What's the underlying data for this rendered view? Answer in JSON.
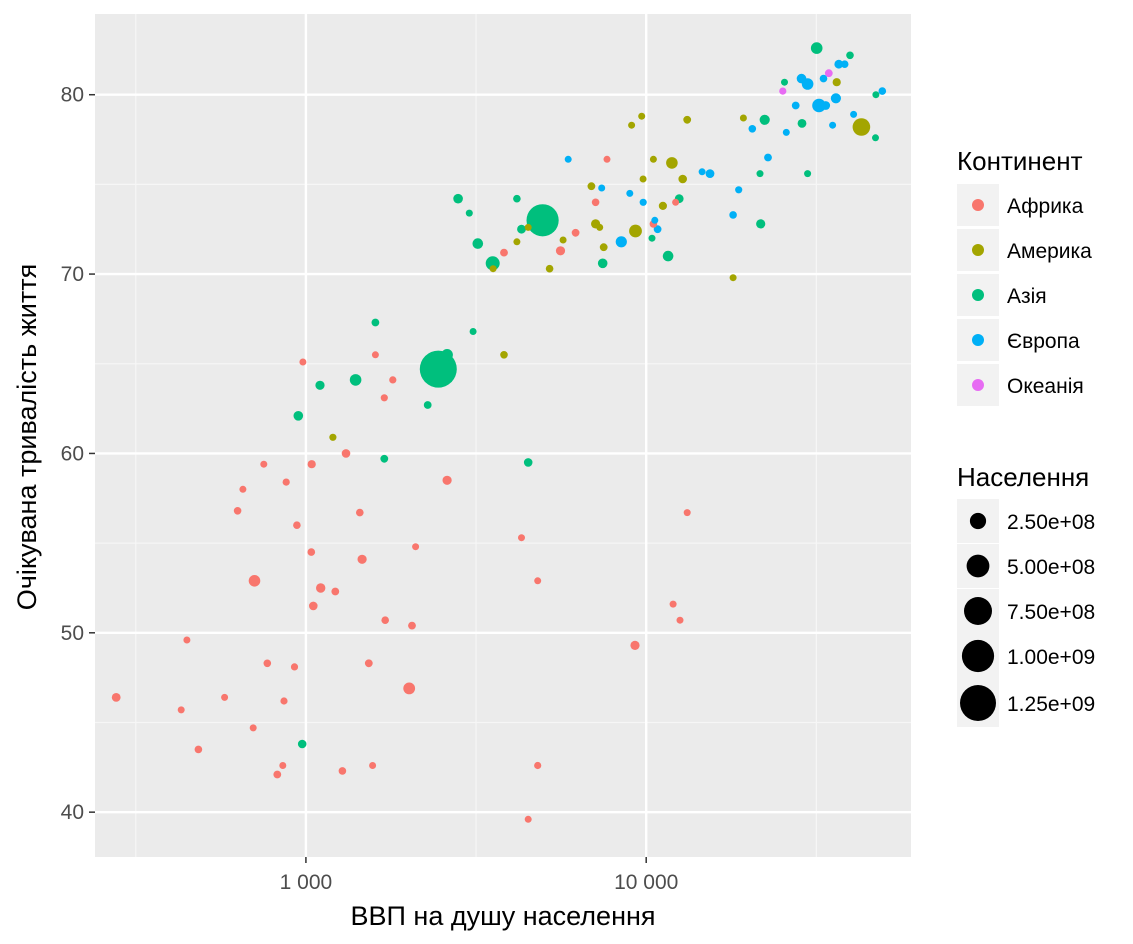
{
  "chart_data": {
    "type": "scatter",
    "title": "",
    "xlabel": "ВВП на душу населення",
    "ylabel": "Очікувана тривалість життя",
    "x_scale": "log10",
    "xlim": [
      240,
      60000
    ],
    "ylim": [
      37.5,
      84.5
    ],
    "x_ticks": [
      {
        "value": 1000,
        "label": "1 000"
      },
      {
        "value": 10000,
        "label": "10 000"
      }
    ],
    "y_ticks": [
      {
        "value": 40,
        "label": "40"
      },
      {
        "value": 50,
        "label": "50"
      },
      {
        "value": 60,
        "label": "60"
      },
      {
        "value": 70,
        "label": "70"
      },
      {
        "value": 80,
        "label": "80"
      }
    ],
    "grid": true,
    "legend_position": "right",
    "color_legend": {
      "title": "Континент",
      "items": [
        {
          "label": "Африка",
          "color": "#F8766D"
        },
        {
          "label": "Америка",
          "color": "#A3A500"
        },
        {
          "label": "Азія",
          "color": "#00BF7D"
        },
        {
          "label": "Європа",
          "color": "#00B0F6"
        },
        {
          "label": "Океанія",
          "color": "#E76BF3"
        }
      ]
    },
    "size_legend": {
      "title": "Населення",
      "items": [
        {
          "label": "2.50e+08",
          "value": 250000000
        },
        {
          "label": "5.00e+08",
          "value": 500000000
        },
        {
          "label": "7.50e+08",
          "value": 750000000
        },
        {
          "label": "1.00e+09",
          "value": 1000000000
        },
        {
          "label": "1.25e+09",
          "value": 1250000000
        }
      ]
    },
    "series": [
      {
        "name": "Африка",
        "color": "#F8766D",
        "points": [
          [
            277,
            46.4,
            75000000
          ],
          [
            430,
            45.7,
            40000000
          ],
          [
            447,
            49.6,
            40000000
          ],
          [
            483,
            43.5,
            55000000
          ],
          [
            577,
            46.4,
            40000000
          ],
          [
            630,
            56.8,
            55000000
          ],
          [
            653,
            58.0,
            45000000
          ],
          [
            700,
            44.7,
            45000000
          ],
          [
            706,
            52.9,
            130000000
          ],
          [
            752,
            59.4,
            40000000
          ],
          [
            770,
            48.3,
            55000000
          ],
          [
            824,
            42.1,
            60000000
          ],
          [
            855,
            42.6,
            45000000
          ],
          [
            862,
            46.2,
            50000000
          ],
          [
            875,
            58.4,
            50000000
          ],
          [
            926,
            48.1,
            50000000
          ],
          [
            941,
            56.0,
            55000000
          ],
          [
            980,
            65.1,
            40000000
          ],
          [
            1037,
            54.5,
            55000000
          ],
          [
            1040,
            59.4,
            65000000
          ],
          [
            1051,
            51.5,
            70000000
          ],
          [
            1105,
            52.5,
            85000000
          ],
          [
            1220,
            52.3,
            60000000
          ],
          [
            1280,
            42.3,
            55000000
          ],
          [
            1312,
            60.0,
            70000000
          ],
          [
            1440,
            56.7,
            55000000
          ],
          [
            1463,
            54.1,
            80000000
          ],
          [
            1530,
            48.3,
            60000000
          ],
          [
            1570,
            42.6,
            40000000
          ],
          [
            1600,
            65.5,
            30000000
          ],
          [
            1700,
            63.1,
            50000000
          ],
          [
            1710,
            50.7,
            55000000
          ],
          [
            1800,
            64.1,
            50000000
          ],
          [
            2012,
            46.9,
            135000000
          ],
          [
            2050,
            50.4,
            60000000
          ],
          [
            2100,
            54.8,
            40000000
          ],
          [
            2600,
            58.5,
            80000000
          ],
          [
            3820,
            71.2,
            60000000
          ],
          [
            4300,
            55.3,
            40000000
          ],
          [
            4500,
            39.6,
            35000000
          ],
          [
            4800,
            42.6,
            50000000
          ],
          [
            4800,
            52.9,
            40000000
          ],
          [
            5600,
            71.3,
            80000000
          ],
          [
            6200,
            72.3,
            60000000
          ],
          [
            7100,
            74.0,
            55000000
          ],
          [
            7670,
            76.4,
            35000000
          ],
          [
            9270,
            49.3,
            80000000
          ],
          [
            10500,
            72.8,
            55000000
          ],
          [
            12000,
            51.6,
            40000000
          ],
          [
            12200,
            74.0,
            40000000
          ],
          [
            12570,
            50.7,
            45000000
          ],
          [
            13200,
            56.7,
            40000000
          ]
        ]
      },
      {
        "name": "Америка",
        "color": "#A3A500",
        "points": [
          [
            1200,
            60.9,
            50000000
          ],
          [
            3550,
            70.3,
            40000000
          ],
          [
            3820,
            65.5,
            55000000
          ],
          [
            4170,
            71.8,
            45000000
          ],
          [
            4500,
            72.6,
            45000000
          ],
          [
            5200,
            70.3,
            55000000
          ],
          [
            5700,
            71.9,
            45000000
          ],
          [
            6900,
            74.9,
            60000000
          ],
          [
            7100,
            72.8,
            80000000
          ],
          [
            7300,
            72.6,
            45000000
          ],
          [
            7500,
            71.5,
            60000000
          ],
          [
            9060,
            78.3,
            45000000
          ],
          [
            9300,
            72.4,
            160000000
          ],
          [
            9700,
            78.8,
            45000000
          ],
          [
            9790,
            75.3,
            40000000
          ],
          [
            10500,
            76.4,
            45000000
          ],
          [
            11200,
            73.8,
            65000000
          ],
          [
            11900,
            76.2,
            130000000
          ],
          [
            12800,
            75.3,
            70000000
          ],
          [
            13200,
            78.6,
            60000000
          ],
          [
            18000,
            69.8,
            40000000
          ],
          [
            19300,
            78.7,
            45000000
          ],
          [
            36300,
            80.7,
            65000000
          ],
          [
            42900,
            78.2,
            300000000
          ]
        ]
      },
      {
        "name": "Азія",
        "color": "#00BF7D",
        "points": [
          [
            975,
            43.8,
            70000000
          ],
          [
            950,
            62.1,
            90000000
          ],
          [
            1100,
            63.8,
            80000000
          ],
          [
            1400,
            64.1,
            130000000
          ],
          [
            1600,
            67.3,
            60000000
          ],
          [
            1700,
            59.7,
            60000000
          ],
          [
            2280,
            62.7,
            60000000
          ],
          [
            2450,
            64.7,
            1318000000
          ],
          [
            2600,
            65.5,
            130000000
          ],
          [
            2800,
            74.2,
            90000000
          ],
          [
            3020,
            73.4,
            45000000
          ],
          [
            3100,
            66.8,
            40000000
          ],
          [
            3200,
            71.7,
            110000000
          ],
          [
            3540,
            70.6,
            190000000
          ],
          [
            4170,
            74.2,
            55000000
          ],
          [
            4300,
            72.5,
            75000000
          ],
          [
            4500,
            59.5,
            70000000
          ],
          [
            4960,
            73.0,
            1000000000
          ],
          [
            7450,
            70.6,
            90000000
          ],
          [
            10400,
            72.0,
            45000000
          ],
          [
            11600,
            71.0,
            110000000
          ],
          [
            12500,
            74.2,
            75000000
          ],
          [
            21600,
            75.6,
            40000000
          ],
          [
            21700,
            72.8,
            80000000
          ],
          [
            22300,
            78.6,
            100000000
          ],
          [
            25500,
            80.7,
            45000000
          ],
          [
            28700,
            78.4,
            75000000
          ],
          [
            29800,
            75.6,
            40000000
          ],
          [
            31700,
            82.6,
            130000000
          ],
          [
            39700,
            82.2,
            55000000
          ],
          [
            47300,
            80.0,
            40000000
          ],
          [
            47200,
            77.6,
            40000000
          ]
        ]
      },
      {
        "name": "Європа",
        "color": "#00B0F6",
        "points": [
          [
            5900,
            76.4,
            40000000
          ],
          [
            7400,
            74.8,
            40000000
          ],
          [
            8450,
            71.8,
            120000000
          ],
          [
            8950,
            74.5,
            40000000
          ],
          [
            9800,
            74.0,
            50000000
          ],
          [
            10800,
            72.5,
            60000000
          ],
          [
            10600,
            73.0,
            40000000
          ],
          [
            14600,
            75.7,
            45000000
          ],
          [
            15400,
            75.6,
            75000000
          ],
          [
            18000,
            73.3,
            55000000
          ],
          [
            18700,
            74.7,
            50000000
          ],
          [
            20500,
            78.1,
            55000000
          ],
          [
            22800,
            76.5,
            60000000
          ],
          [
            25800,
            77.9,
            40000000
          ],
          [
            27500,
            79.4,
            60000000
          ],
          [
            28600,
            80.9,
            90000000
          ],
          [
            29800,
            80.6,
            130000000
          ],
          [
            32200,
            79.4,
            180000000
          ],
          [
            33200,
            80.9,
            55000000
          ],
          [
            33700,
            79.4,
            75000000
          ],
          [
            35300,
            78.3,
            45000000
          ],
          [
            36100,
            79.8,
            100000000
          ],
          [
            36800,
            81.7,
            75000000
          ],
          [
            38300,
            81.7,
            55000000
          ],
          [
            40700,
            78.9,
            45000000
          ],
          [
            49400,
            80.2,
            55000000
          ]
        ]
      },
      {
        "name": "Океанія",
        "color": "#E76BF3",
        "points": [
          [
            25200,
            80.2,
            50000000
          ],
          [
            34400,
            81.2,
            60000000
          ]
        ]
      }
    ]
  }
}
